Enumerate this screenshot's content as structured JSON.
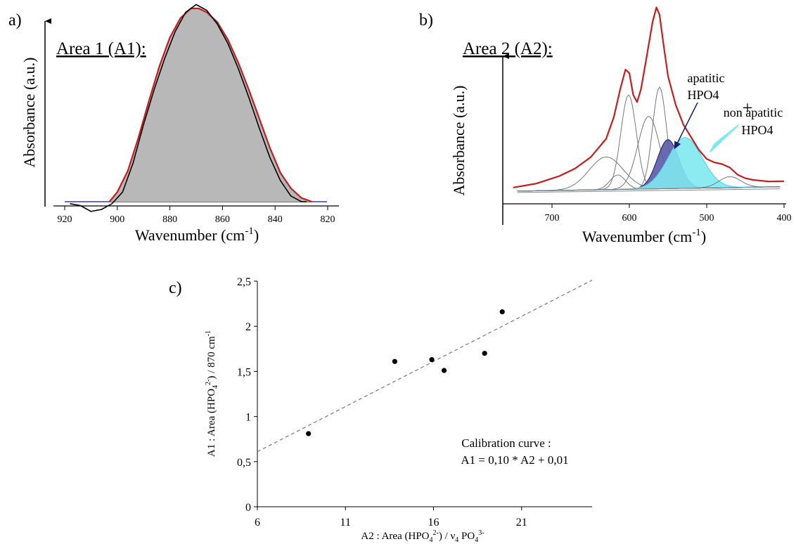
{
  "chart_data": [
    {
      "panel": "a)",
      "type": "area",
      "annotation": "Area 1 (A1):",
      "xlabel": "Wavenumber (cm",
      "xlabel_sup": "-1",
      "xlabel_end": ")",
      "ylabel": "Absorbance (a.u.)",
      "xlim": [
        923,
        817
      ],
      "ylim": [
        -0.06,
        1.0
      ],
      "xticks": [
        "920",
        "900",
        "880",
        "860",
        "840",
        "820"
      ],
      "baseline_color": "#3a3aa0",
      "series": [
        {
          "color": "#c41e1e",
          "fill": "#b8b8b8",
          "x": [
            903,
            900,
            896,
            892,
            888,
            884,
            880,
            876,
            872,
            869,
            866,
            862,
            858,
            854,
            850,
            846,
            842,
            838,
            834,
            830,
            826
          ],
          "y": [
            0.0,
            0.05,
            0.16,
            0.33,
            0.52,
            0.7,
            0.85,
            0.95,
            1.0,
            1.0,
            0.98,
            0.93,
            0.84,
            0.72,
            0.58,
            0.43,
            0.28,
            0.15,
            0.07,
            0.02,
            0.0
          ]
        },
        {
          "color": "#000000",
          "x": [
            918,
            914,
            910,
            906,
            902,
            898,
            894,
            890,
            886,
            882,
            878,
            874,
            870,
            866,
            862,
            858,
            854,
            850,
            846,
            842,
            838,
            834,
            830,
            828
          ],
          "y": [
            -0.01,
            -0.02,
            -0.05,
            -0.04,
            -0.01,
            0.05,
            0.2,
            0.4,
            0.58,
            0.74,
            0.88,
            0.98,
            1.02,
            0.99,
            0.92,
            0.82,
            0.69,
            0.54,
            0.38,
            0.23,
            0.11,
            0.03,
            0.0,
            0.0
          ]
        }
      ]
    },
    {
      "panel": "b)",
      "type": "line",
      "annotation": "Area 2 (A2):",
      "xlabel": "Wavenumber (cm",
      "xlabel_sup": "-1",
      "xlabel_end": ")",
      "ylabel": "Absorbance (a.u.)",
      "xlim": [
        750,
        400
      ],
      "ylim": [
        -0.04,
        1.0
      ],
      "xticks": [
        "700",
        "600",
        "500",
        "400"
      ],
      "labels": {
        "apatitic_1": "apatitic",
        "apatitic_2": "HPO4",
        "plus": "+",
        "non_apatitic_1": "non apatitic",
        "non_apatitic_2": "HPO4"
      },
      "envelope": {
        "color": "#c41e1e",
        "x": [
          750,
          720,
          690,
          670,
          650,
          630,
          620,
          612,
          605,
          600,
          595,
          590,
          585,
          578,
          570,
          565,
          561,
          556,
          550,
          540,
          530,
          520,
          510,
          500,
          490,
          480,
          470,
          460,
          450,
          440,
          420,
          400
        ],
        "y": [
          0.02,
          0.04,
          0.08,
          0.12,
          0.18,
          0.28,
          0.4,
          0.55,
          0.66,
          0.64,
          0.52,
          0.48,
          0.55,
          0.72,
          0.92,
          1.0,
          0.96,
          0.8,
          0.62,
          0.46,
          0.35,
          0.28,
          0.21,
          0.16,
          0.14,
          0.13,
          0.11,
          0.07,
          0.05,
          0.04,
          0.03,
          0.03
        ]
      },
      "components": [
        {
          "name": "",
          "center": 630,
          "height": 0.18,
          "width": 22,
          "color": "#777777"
        },
        {
          "name": "",
          "center": 615,
          "height": 0.08,
          "width": 10,
          "color": "#777777"
        },
        {
          "name": "",
          "center": 601,
          "height": 0.52,
          "width": 10,
          "color": "#777777"
        },
        {
          "name": "",
          "center": 575,
          "height": 0.4,
          "width": 14,
          "color": "#777777"
        },
        {
          "name": "",
          "center": 561,
          "height": 0.56,
          "width": 9,
          "color": "#777777"
        },
        {
          "name": "apatitic",
          "center": 550,
          "height": 0.27,
          "width": 14,
          "color": "#1a1a6e",
          "fill": "#5a5aa8"
        },
        {
          "name": "non apatitic",
          "center": 528,
          "height": 0.28,
          "width": 22,
          "color": "#5ad0e0",
          "fill": "#7fe8f0"
        },
        {
          "name": "",
          "center": 470,
          "height": 0.06,
          "width": 14,
          "color": "#777777"
        }
      ]
    },
    {
      "panel": "c)",
      "type": "scatter",
      "xlabel_parts": [
        "A2 : Area (HPO",
        "4",
        "2-",
        ") / ν",
        "4",
        " PO",
        "4",
        "3-"
      ],
      "ylabel_parts": [
        "A1 : Area (HPO",
        "4",
        "2-",
        ") / 870 cm",
        "-1"
      ],
      "xlim": [
        6,
        25
      ],
      "ylim": [
        0,
        2.5
      ],
      "xticks": [
        "6",
        "11",
        "16",
        "21"
      ],
      "xtick_values": [
        6,
        11,
        16,
        21
      ],
      "yticks": [
        "0",
        "0,5",
        "1",
        "1,5",
        "2",
        "2,5"
      ],
      "ytick_values": [
        0,
        0.5,
        1,
        1.5,
        2,
        2.5
      ],
      "points": [
        {
          "x": 8.9,
          "y": 0.81
        },
        {
          "x": 13.8,
          "y": 1.61
        },
        {
          "x": 15.9,
          "y": 1.63
        },
        {
          "x": 16.6,
          "y": 1.51
        },
        {
          "x": 18.9,
          "y": 1.7
        },
        {
          "x": 19.9,
          "y": 2.16
        }
      ],
      "trendline": {
        "x": [
          6,
          25
        ],
        "y": [
          0.61,
          2.51
        ]
      },
      "annotation_line1": "Calibration curve :",
      "annotation_line2": "A1 = 0,10 * A2 + 0,01"
    }
  ]
}
